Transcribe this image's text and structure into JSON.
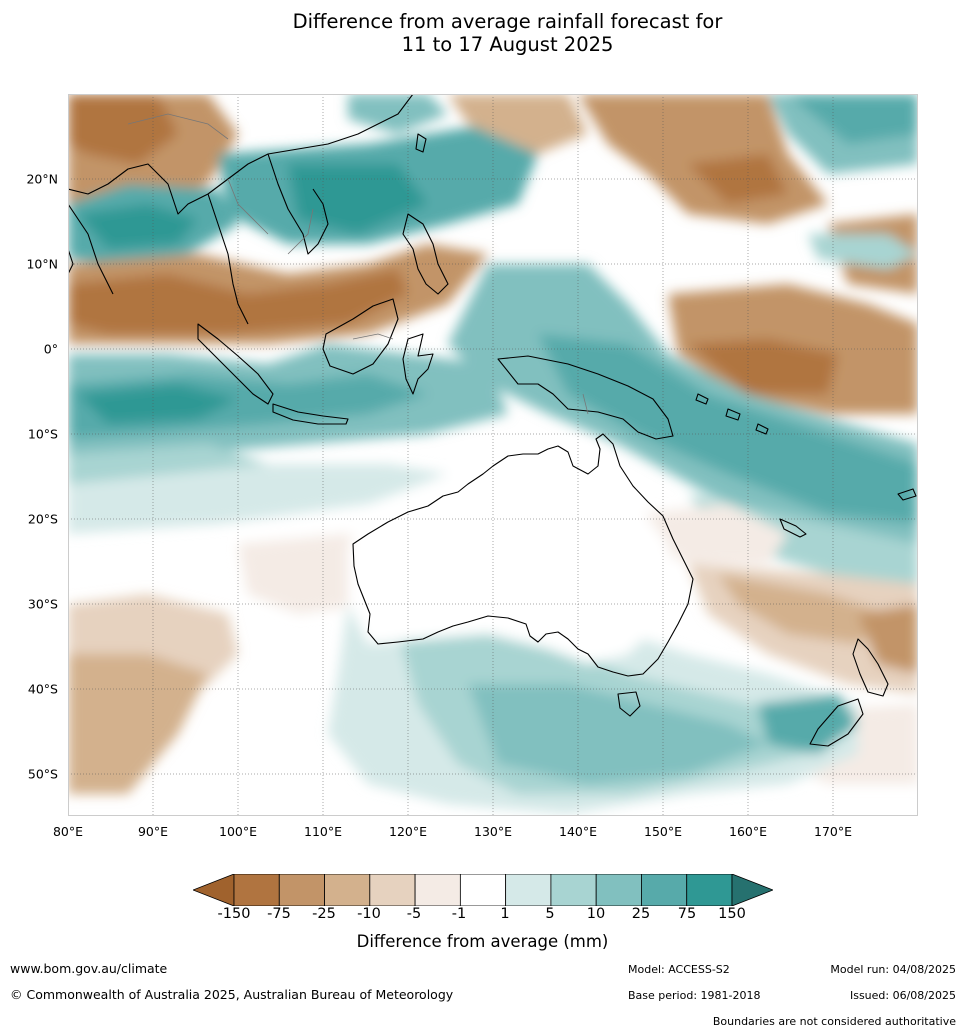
{
  "title": {
    "line1": "Difference from average rainfall forecast for",
    "line2": "11 to 17 August 2025"
  },
  "map": {
    "lat_labels": [
      "20°N",
      "10°N",
      "0°",
      "10°S",
      "20°S",
      "30°S",
      "40°S",
      "50°S"
    ],
    "lon_labels": [
      "80°E",
      "90°E",
      "100°E",
      "110°E",
      "120°E",
      "130°E",
      "140°E",
      "150°E",
      "160°E",
      "170°E"
    ],
    "lon_range": [
      80,
      180
    ],
    "lat_range": [
      -55,
      30
    ]
  },
  "colorbar": {
    "ticks": [
      "-150",
      "-75",
      "-25",
      "-10",
      "-5",
      "-1",
      "1",
      "5",
      "10",
      "25",
      "75",
      "150"
    ],
    "colors": [
      "#a0622d",
      "#b07440",
      "#c29468",
      "#d3b18d",
      "#e6d2bf",
      "#f4ebe5",
      "#ffffff",
      "#d5e9e8",
      "#a8d4d2",
      "#81c0bf",
      "#57aaaa",
      "#2f9894",
      "#26716f"
    ],
    "title": "Difference from average (mm)"
  },
  "footer": {
    "website": "www.bom.gov.au/climate",
    "copyright": "© Commonwealth of Australia 2025, Australian Bureau of Meteorology",
    "model": "Model: ACCESS-S2",
    "base_period": "Base period: 1981-2018",
    "model_run": "Model run: 04/08/2025",
    "issued": "Issued: 06/08/2025",
    "disclaimer": "Boundaries are not considered authoritative"
  }
}
